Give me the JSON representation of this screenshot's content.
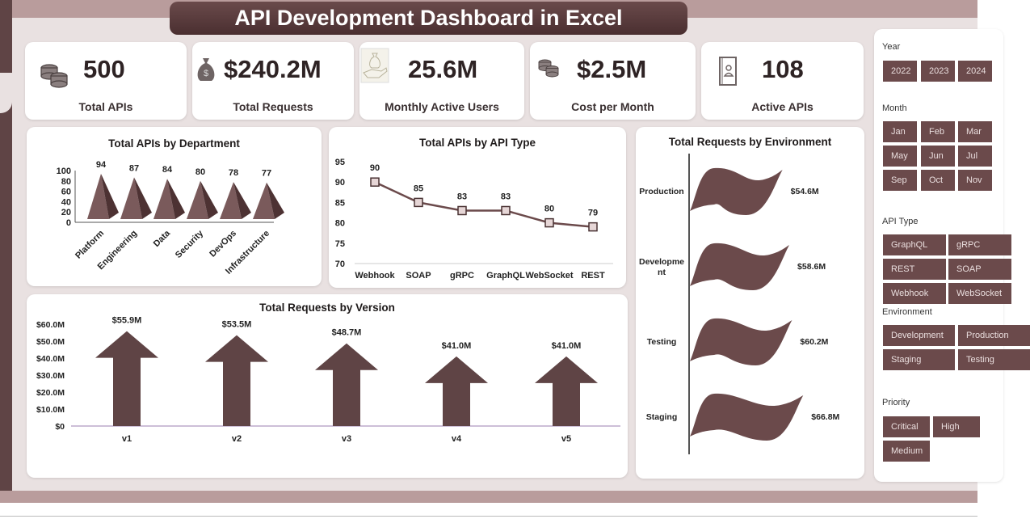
{
  "title": "API Development Dashboard in Excel",
  "kpis": [
    {
      "value": "500",
      "label": "Total APIs",
      "icon": "coins-icon"
    },
    {
      "value": "$240.2M",
      "label": "Total Requests",
      "icon": "money-bag-icon"
    },
    {
      "value": "25.6M",
      "label": "Monthly Active Users",
      "icon": "hand-money-icon"
    },
    {
      "value": "$2.5M",
      "label": "Cost per Month",
      "icon": "coins-icon"
    },
    {
      "value": "108",
      "label": "Active APIs",
      "icon": "contact-book-icon"
    }
  ],
  "colors": {
    "accent": "#6b4a4b",
    "dark": "#4a2f30",
    "band": "#b99c9c",
    "background": "#e9e1e1"
  },
  "chart_data": [
    {
      "type": "bar",
      "style": "pyramid",
      "title": "Total APIs by Department",
      "categories": [
        "Platform",
        "Engineering",
        "Data",
        "Security",
        "DevOps",
        "Infrastructure"
      ],
      "values": [
        94,
        87,
        84,
        80,
        78,
        77
      ],
      "data_labels": [
        "94",
        "87",
        "84",
        "80",
        "78",
        "77"
      ],
      "ylim": [
        0,
        100
      ],
      "yticks": [
        "0",
        "20",
        "40",
        "60",
        "80",
        "100"
      ],
      "grid": false
    },
    {
      "type": "line",
      "title": "Total APIs by API Type",
      "categories": [
        "Webhook",
        "SOAP",
        "gRPC",
        "GraphQL",
        "WebSocket",
        "REST"
      ],
      "values": [
        90,
        85,
        83,
        83,
        80,
        79
      ],
      "data_labels": [
        "90",
        "85",
        "83",
        "83",
        "80",
        "79"
      ],
      "ylim": [
        70,
        95
      ],
      "yticks": [
        "70",
        "75",
        "80",
        "85",
        "90",
        "95"
      ],
      "grid": false
    },
    {
      "type": "bar",
      "style": "arrow",
      "title": "Total Requests by Version",
      "categories": [
        "v1",
        "v2",
        "v3",
        "v4",
        "v5"
      ],
      "values": [
        55.9,
        53.5,
        48.7,
        41.0,
        41.0
      ],
      "data_labels": [
        "$55.9M",
        "$53.5M",
        "$48.7M",
        "$41.0M",
        "$41.0M"
      ],
      "ylim": [
        0,
        60
      ],
      "yticks": [
        "$0",
        "$10.0M",
        "$20.0M",
        "$30.0M",
        "$40.0M",
        "$50.0M",
        "$60.0M"
      ],
      "grid": false
    },
    {
      "type": "bar",
      "style": "flag",
      "orientation": "horizontal",
      "title": "Total Requests by Environment",
      "categories": [
        "Production",
        "Developme nt",
        "Testing",
        "Staging"
      ],
      "values": [
        54.6,
        58.6,
        60.2,
        66.8
      ],
      "data_labels": [
        "$54.6M",
        "$58.6M",
        "$60.2M",
        "$66.8M"
      ],
      "grid": false
    }
  ],
  "slicers": {
    "year": {
      "label": "Year",
      "items": [
        "2022",
        "2023",
        "2024"
      ]
    },
    "month": {
      "label": "Month",
      "items": [
        "Jan",
        "Feb",
        "Mar",
        "May",
        "Jun",
        "Jul",
        "Sep",
        "Oct",
        "Nov"
      ]
    },
    "api_type": {
      "label": "API Type",
      "items": [
        "GraphQL",
        "gRPC",
        "REST",
        "SOAP",
        "Webhook",
        "WebSocket"
      ]
    },
    "environment": {
      "label": "Environment",
      "items": [
        "Development",
        "Production",
        "Staging",
        "Testing"
      ]
    },
    "priority": {
      "label": "Priority",
      "items": [
        "Critical",
        "High",
        "Medium"
      ]
    }
  }
}
